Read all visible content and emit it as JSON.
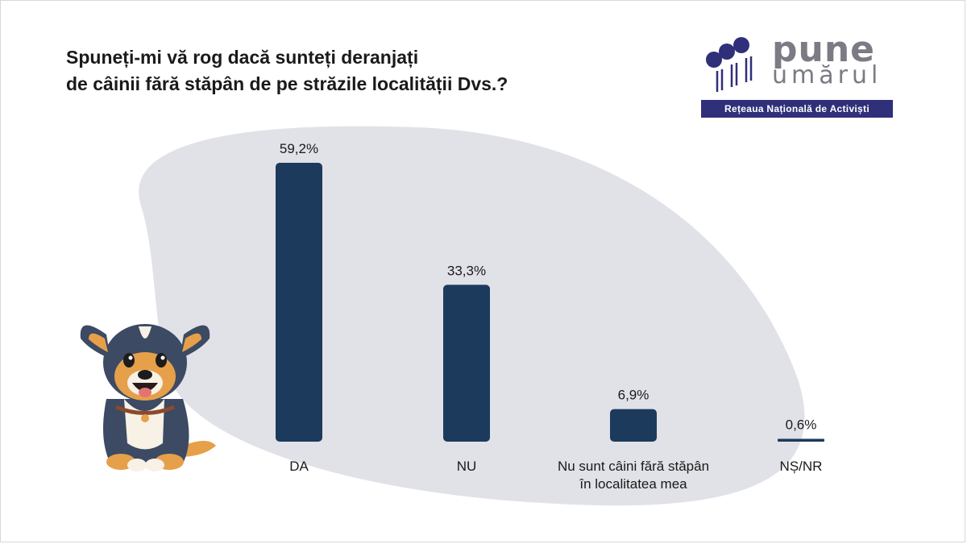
{
  "title_lines": [
    "Spuneți-mi vă rog dacă sunteți deranjați",
    "de câinii fără stăpân de pe străzile localității Dvs.?"
  ],
  "logo": {
    "word1": "pune",
    "word2": "umărul",
    "tagline": "Rețeaua Națională de Activiști"
  },
  "colors": {
    "bar": "#1c3a5c",
    "blob": "#e1e1e8",
    "logo_dots": "#2f2f7a",
    "logo_text": "#7b7b85"
  },
  "chart_data": {
    "type": "bar",
    "categories": [
      [
        "DA"
      ],
      [
        "NU"
      ],
      [
        "Nu sunt câini fără stăpân",
        "în localitatea mea"
      ],
      [
        "NȘ/NR"
      ]
    ],
    "values": [
      59.2,
      33.3,
      6.9,
      0.6
    ],
    "value_labels": [
      "59,2%",
      "33,3%",
      "6,9%",
      "0,6%"
    ],
    "ylim": [
      0,
      59.2
    ],
    "grid": false,
    "legend": "none",
    "xlabel": "",
    "ylabel": ""
  }
}
